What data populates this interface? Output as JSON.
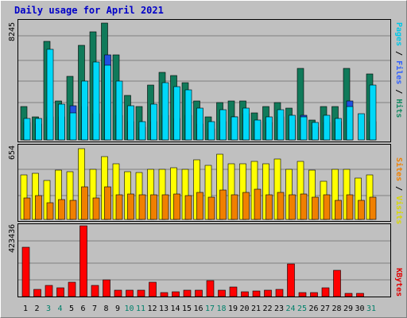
{
  "chart_data": {
    "type": "bar",
    "title": "Daily usage for April 2021",
    "categories": [
      "1",
      "2",
      "3",
      "4",
      "5",
      "6",
      "7",
      "8",
      "9",
      "10",
      "11",
      "12",
      "13",
      "14",
      "15",
      "16",
      "17",
      "18",
      "19",
      "20",
      "21",
      "22",
      "23",
      "24",
      "25",
      "26",
      "27",
      "28",
      "29",
      "30",
      "31"
    ],
    "weekend_days": [
      "3",
      "4",
      "10",
      "11",
      "17",
      "18",
      "24",
      "25",
      "31"
    ],
    "panels": [
      {
        "name": "hits",
        "ymax_label": "8245",
        "ylim": [
          0,
          8245
        ],
        "right_labels": [
          {
            "text": "Pages",
            "color": "#00c8e8"
          },
          {
            "text": " / ",
            "color": "#000000"
          },
          {
            "text": "Files",
            "color": "#3060ff"
          },
          {
            "text": " / ",
            "color": "#000000"
          },
          {
            "text": "Hits",
            "color": "#148a62"
          }
        ],
        "series": [
          {
            "name": "Hits",
            "color": "#107a5a",
            "values": [
              2300,
              1600,
              6850,
              2700,
              4400,
              6600,
              7500,
              8150,
              5900,
              3100,
              2300,
              3800,
              4700,
              4500,
              4000,
              2700,
              1600,
              2600,
              2700,
              2700,
              1900,
              2300,
              2600,
              2200,
              5000,
              1400,
              2300,
              2300,
              5000,
              0,
              4600
            ]
          },
          {
            "name": "Files",
            "color": "#2050e0",
            "values": [
              1200,
              1100,
              1600,
              1600,
              2400,
              2300,
              1800,
              5900,
              1700,
              1300,
              900,
              1300,
              1700,
              1500,
              1700,
              1100,
              800,
              1300,
              1600,
              1800,
              1300,
              1200,
              1600,
              1400,
              1700,
              900,
              1200,
              1300,
              2700,
              0,
              1300
            ]
          },
          {
            "name": "Pages",
            "color": "#00d8f8",
            "values": [
              1500,
              1500,
              6300,
              2500,
              1900,
              4100,
              5400,
              5200,
              4100,
              2400,
              1300,
              2500,
              4000,
              3700,
              3500,
              2200,
              1300,
              2100,
              1600,
              2200,
              1400,
              1600,
              2100,
              1700,
              1600,
              1200,
              1700,
              1500,
              2300,
              1800,
              3800
            ]
          }
        ]
      },
      {
        "name": "visits",
        "ymax_label": "654",
        "ylim": [
          0,
          654
        ],
        "right_labels": [
          {
            "text": "Sites",
            "color": "#f08000"
          },
          {
            "text": " / ",
            "color": "#000000"
          },
          {
            "text": "Visits",
            "color": "#d8d800"
          }
        ],
        "series": [
          {
            "name": "Visits",
            "color": "#ffff00",
            "values": [
              400,
              410,
              350,
              440,
              430,
              630,
              450,
              560,
              500,
              430,
              420,
              450,
              450,
              460,
              450,
              530,
              480,
              580,
              500,
              500,
              520,
              500,
              540,
              450,
              520,
              440,
              340,
              450,
              450,
              370,
              400
            ]
          },
          {
            "name": "Sites",
            "color": "#f08000",
            "values": [
              190,
              210,
              150,
              180,
              170,
              290,
              190,
              290,
              220,
              230,
              220,
              220,
              220,
              230,
              210,
              240,
              200,
              260,
              220,
              240,
              270,
              220,
              240,
              220,
              230,
              200,
              220,
              170,
              220,
              170,
              200
            ]
          }
        ]
      },
      {
        "name": "kbytes",
        "ymax_label": "423436",
        "ylim": [
          0,
          423436
        ],
        "right_labels": [
          {
            "text": "KBytes",
            "color": "#e00000"
          }
        ],
        "series": [
          {
            "name": "KBytes",
            "color": "#ff0000",
            "values": [
              295000,
              45000,
              65000,
              50000,
              85000,
              423436,
              65000,
              100000,
              40000,
              40000,
              40000,
              85000,
              25000,
              30000,
              40000,
              40000,
              95000,
              40000,
              55000,
              30000,
              35000,
              40000,
              45000,
              195000,
              25000,
              25000,
              50000,
              155000,
              20000,
              20000,
              0
            ]
          }
        ]
      }
    ]
  }
}
